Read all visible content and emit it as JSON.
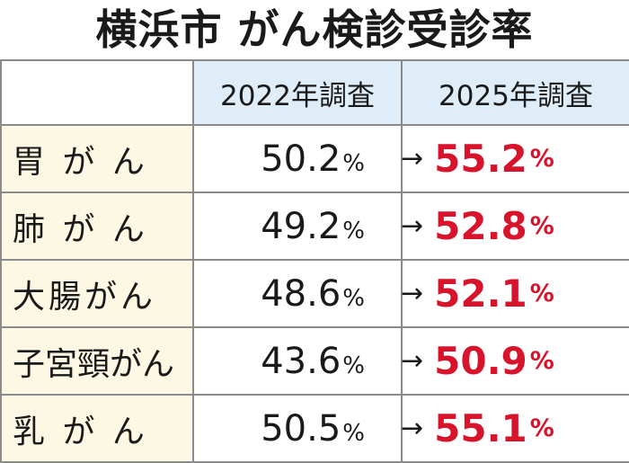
{
  "title": "横浜市 がん検診受診率",
  "columns": {
    "year_2022": "2022年調査",
    "year_2025": "2025年調査"
  },
  "arrow": "→",
  "percent_sign": "%",
  "rows": [
    {
      "label": "胃 が ん",
      "value_2022": "50.2",
      "value_2025": "55.2"
    },
    {
      "label": "肺 が ん",
      "value_2022": "49.2",
      "value_2025": "52.8"
    },
    {
      "label": "大腸がん",
      "value_2022": "48.6",
      "value_2025": "52.1"
    },
    {
      "label": "子宮頸がん",
      "value_2022": "43.6",
      "value_2025": "50.9"
    },
    {
      "label": "乳 が ん",
      "value_2022": "50.5",
      "value_2025": "55.1"
    }
  ],
  "colors": {
    "header_bg": "#deedf8",
    "label_bg": "#fdf8e4",
    "highlight_red": "#d7142b",
    "border": "#8a8a8a"
  }
}
